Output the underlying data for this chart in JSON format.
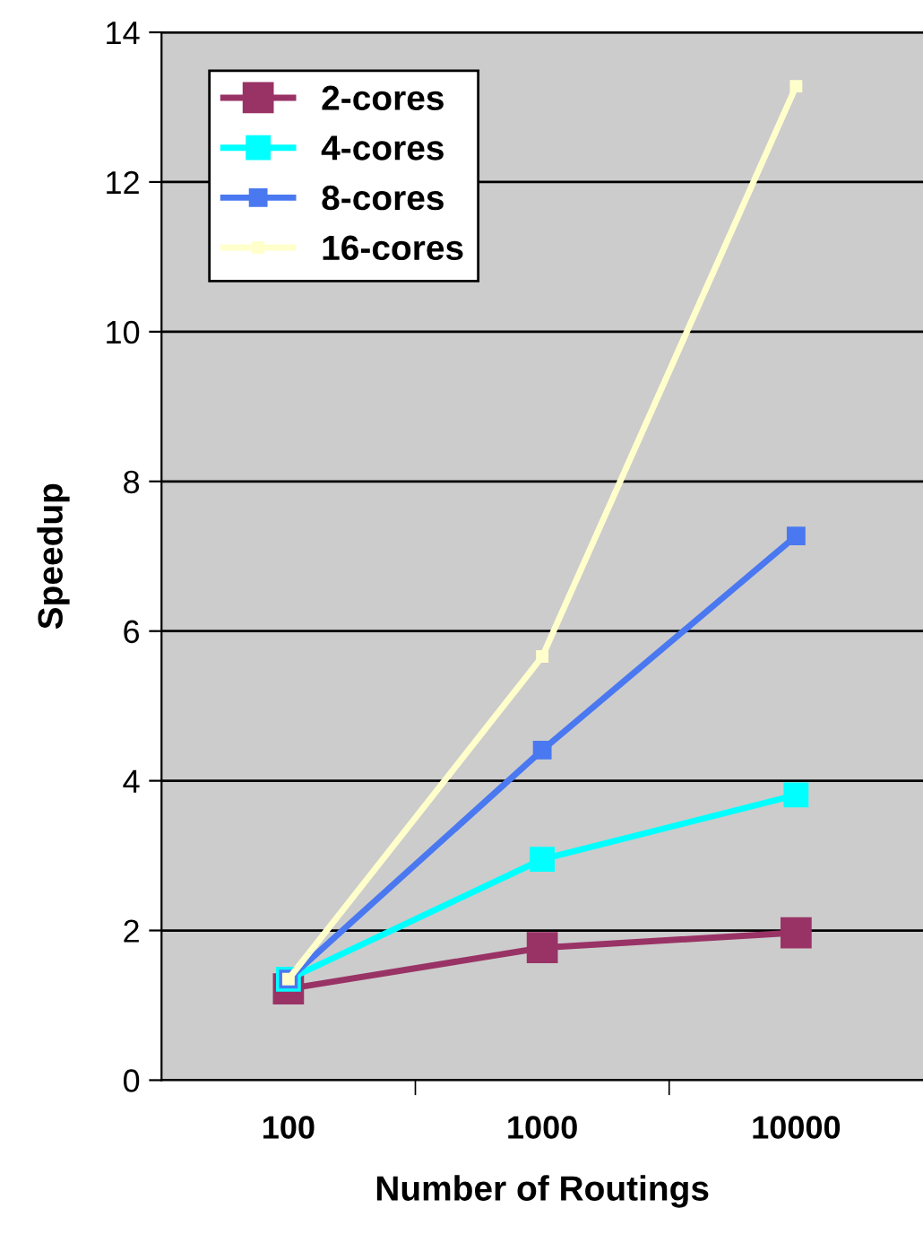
{
  "chart_data": {
    "type": "line",
    "xlabel": "Number of Routings",
    "ylabel": "Speedup",
    "categories": [
      "100",
      "1000",
      "10000"
    ],
    "series": [
      {
        "name": "2-cores",
        "color": "#993366",
        "values": [
          1.22,
          1.77,
          1.97
        ]
      },
      {
        "name": "4-cores",
        "color": "#00ffff",
        "values": [
          1.35,
          2.95,
          3.81
        ]
      },
      {
        "name": "8-cores",
        "color": "#4a78f0",
        "values": [
          1.35,
          4.41,
          7.27
        ]
      },
      {
        "name": "16-cores",
        "color": "#ffffcc",
        "values": [
          1.35,
          5.66,
          13.28
        ]
      }
    ],
    "ylim": [
      0,
      14
    ],
    "yticks": [
      0,
      2,
      4,
      6,
      8,
      10,
      12,
      14
    ],
    "grid": "y",
    "legend": "top left",
    "marker": "square",
    "line_style": "solid"
  }
}
